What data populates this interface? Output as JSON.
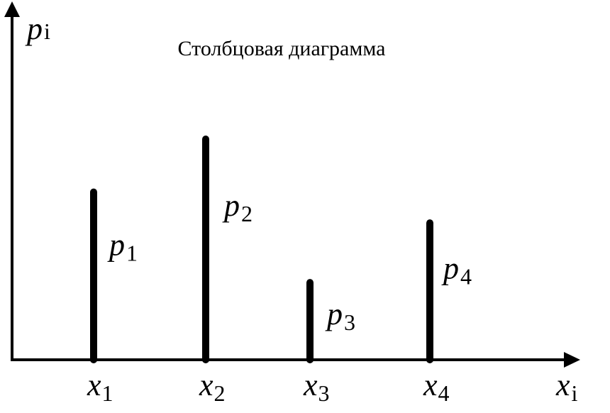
{
  "chart_data": {
    "type": "bar",
    "title": "Столбцовая диаграмма",
    "xlabel": {
      "main": "x",
      "sub": "i"
    },
    "ylabel": {
      "main": "p",
      "sub": "i"
    },
    "grid": false,
    "legend": "none",
    "ylim": [
      0,
      1
    ],
    "categories": [
      {
        "main": "x",
        "sub": "1"
      },
      {
        "main": "x",
        "sub": "2"
      },
      {
        "main": "x",
        "sub": "3"
      },
      {
        "main": "x",
        "sub": "4"
      }
    ],
    "values": [
      0.76,
      1.0,
      0.35,
      0.62
    ],
    "bar_labels": [
      {
        "main": "p",
        "sub": "1"
      },
      {
        "main": "p",
        "sub": "2"
      },
      {
        "main": "p",
        "sub": "3"
      },
      {
        "main": "p",
        "sub": "4"
      }
    ],
    "colors": {
      "ink": "#000000",
      "background": "#ffffff"
    }
  }
}
